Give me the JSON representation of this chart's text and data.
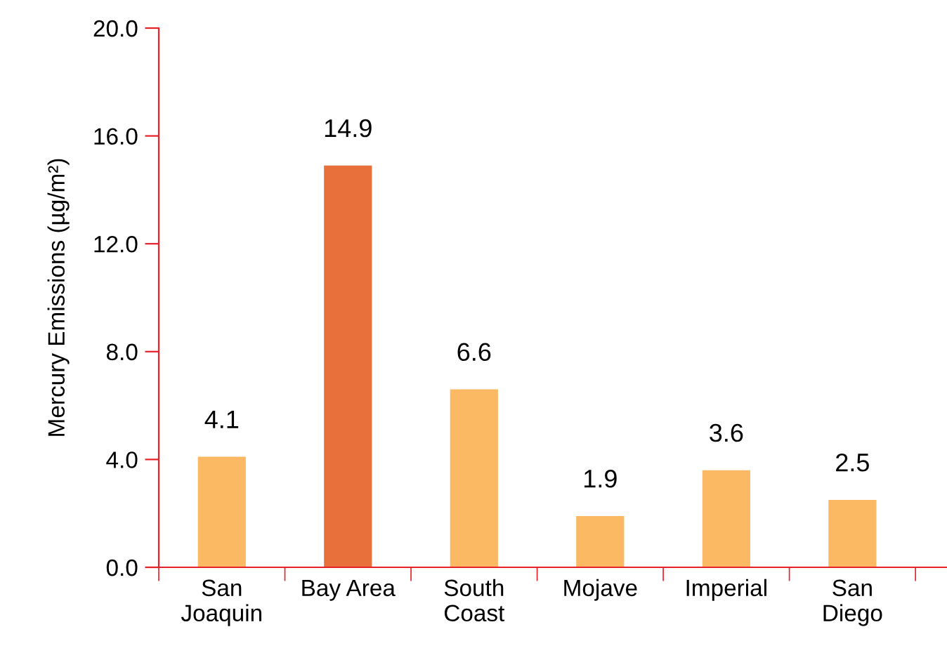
{
  "chart_data": {
    "type": "bar",
    "ylabel": "Mercury Emissions (µg/m²)",
    "categories": [
      "San\nJoaquin",
      "Bay Area",
      "South\nCoast",
      "Mojave",
      "Imperial",
      "San\nDiego"
    ],
    "values": [
      4.1,
      14.9,
      6.6,
      1.9,
      3.6,
      2.5
    ],
    "colors": [
      "#fbb964",
      "#e8703a",
      "#fbb964",
      "#fbb964",
      "#fbb964",
      "#fbb964"
    ],
    "ylim": [
      0,
      20
    ],
    "yticks": [
      {
        "value": 0,
        "label": "0.0"
      },
      {
        "value": 4,
        "label": "4.0"
      },
      {
        "value": 8,
        "label": "8.0"
      },
      {
        "value": 12,
        "label": "12.0"
      },
      {
        "value": 16,
        "label": "16.0"
      },
      {
        "value": 20,
        "label": "20.0"
      }
    ],
    "data_labels": true,
    "grid": false,
    "legend": false
  }
}
